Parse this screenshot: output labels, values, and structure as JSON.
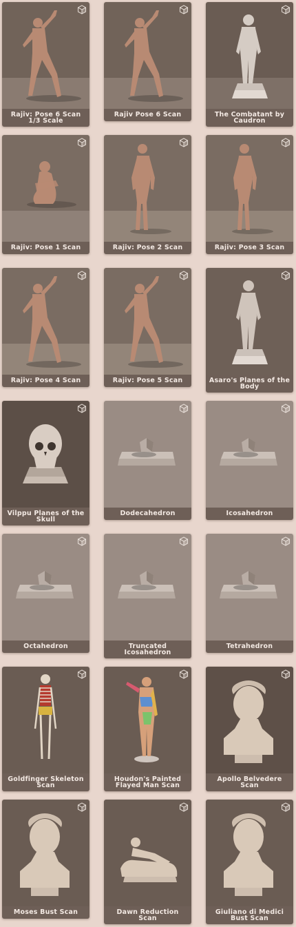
{
  "models": [
    {
      "title": "Rajiv: Pose 6 Scan 1/3 Scale",
      "scene": "figure",
      "bg": "#716359",
      "floor": "#8a7b71",
      "skin": "#b88a73"
    },
    {
      "title": "Rajiv Pose 6 Scan",
      "scene": "figure",
      "bg": "#716359",
      "floor": "#8a7b71",
      "skin": "#b88a73"
    },
    {
      "title": "The Combatant by Caudron",
      "scene": "statue",
      "bg": "#6a5c53",
      "floor": "#7e7067",
      "skin": "#d5ccc4"
    },
    {
      "title": "Rajiv: Pose 1 Scan",
      "scene": "seated",
      "bg": "#7a6c62",
      "floor": "#8f8178",
      "skin": "#b88a73"
    },
    {
      "title": "Rajiv: Pose 2 Scan",
      "scene": "standing",
      "bg": "#7a6c62",
      "floor": "#938579",
      "skin": "#b88a73"
    },
    {
      "title": "Rajiv: Pose 3 Scan",
      "scene": "standing",
      "bg": "#7a6c62",
      "floor": "#938579",
      "skin": "#b88a73"
    },
    {
      "title": "Rajiv: Pose 4 Scan",
      "scene": "figure",
      "bg": "#7a6c62",
      "floor": "#938579",
      "skin": "#b88a73"
    },
    {
      "title": "Rajiv: Pose 5 Scan",
      "scene": "figure",
      "bg": "#7a6c62",
      "floor": "#938579",
      "skin": "#b88a73"
    },
    {
      "title": "Asaro's Planes of the Body",
      "scene": "statue",
      "bg": "#6e6057",
      "floor": "#6e6057",
      "skin": "#cfc4bb"
    },
    {
      "title": "Vilppu Planes of the Skull",
      "scene": "skull",
      "bg": "#5c4f47",
      "floor": "#5c4f47",
      "skin": "#d9cdc3"
    },
    {
      "title": "Dodecahedron",
      "scene": "solid",
      "bg": "#9a8c84",
      "floor": "#9a8c84",
      "skin": "#b9ada5"
    },
    {
      "title": "Icosahedron",
      "scene": "solid",
      "bg": "#9a8c84",
      "floor": "#9a8c84",
      "skin": "#b9ada5"
    },
    {
      "title": "Octahedron",
      "scene": "solid",
      "bg": "#9a8c84",
      "floor": "#9a8c84",
      "skin": "#b9ada5"
    },
    {
      "title": "Truncated Icosahedron",
      "scene": "solid",
      "bg": "#9a8c84",
      "floor": "#9a8c84",
      "skin": "#b9ada5"
    },
    {
      "title": "Tetrahedron",
      "scene": "solid",
      "bg": "#9a8c84",
      "floor": "#9a8c84",
      "skin": "#b9ada5"
    },
    {
      "title": "Goldfinger Skeleton Scan",
      "scene": "skeleton",
      "bg": "#6a5c53",
      "floor": "#6a5c53",
      "skin": "#e2d6c6"
    },
    {
      "title": "Houdon's Painted Flayed Man Scan",
      "scene": "flayed",
      "bg": "#6a5c53",
      "floor": "#6a5c53",
      "skin": "#d6a07a"
    },
    {
      "title": "Apollo Belvedere Scan",
      "scene": "bust",
      "bg": "#5e5048",
      "floor": "#5e5048",
      "skin": "#d9c9b8"
    },
    {
      "title": "Moses Bust Scan",
      "scene": "bust",
      "bg": "#6a5c53",
      "floor": "#6a5c53",
      "skin": "#d9c9b8"
    },
    {
      "title": "Dawn Reduction Scan",
      "scene": "reclining",
      "bg": "#6a5c53",
      "floor": "#6a5c53",
      "skin": "#d9c9b8"
    },
    {
      "title": "Giuliano di Medici Bust Scan",
      "scene": "bust",
      "bg": "#6a5c53",
      "floor": "#6a5c53",
      "skin": "#d9c9b8"
    }
  ]
}
